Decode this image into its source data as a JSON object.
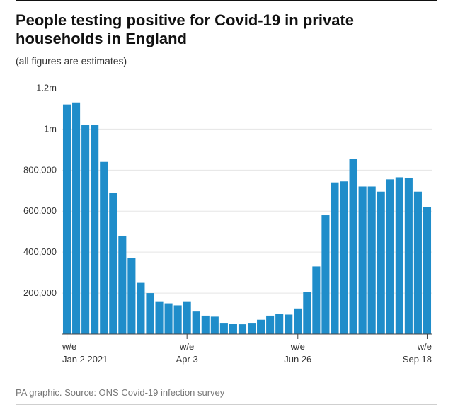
{
  "title": "People testing positive for Covid-19 in private households in England",
  "subtitle": "(all figures are estimates)",
  "source": "PA graphic. Source: ONS Covid-19 infection survey",
  "colors": {
    "page_bg": "#ffffff",
    "rule_top": "#111111",
    "rule_bottom": "#cfcfcf",
    "title": "#111111",
    "subtitle": "#333333",
    "source": "#777777",
    "grid": "#e5e5e5",
    "axis": "#444444",
    "bar": "#1f8dca",
    "tick_label": "#333333"
  },
  "typography": {
    "title_fontsize": 22,
    "title_weight": 700,
    "subtitle_fontsize": 14,
    "source_fontsize": 13,
    "axis_label_fontsize": 13
  },
  "chart": {
    "type": "bar",
    "ymin": 0,
    "ymax": 1250000,
    "ytick_step": 200000,
    "ytick_labels": [
      "200,000",
      "400,000",
      "600,000",
      "800,000",
      "1m",
      "1.2m"
    ],
    "bar_gap_ratio": 0.15,
    "plot_left_pad": 66,
    "plot_right_pad": 8,
    "plot_top_pad": 10,
    "plot_bottom_pad": 52,
    "values": [
      1120000,
      1130000,
      1020000,
      1020000,
      840000,
      690000,
      480000,
      370000,
      250000,
      200000,
      160000,
      150000,
      140000,
      160000,
      110000,
      90000,
      85000,
      55000,
      50000,
      48000,
      55000,
      70000,
      90000,
      100000,
      95000,
      125000,
      205000,
      330000,
      580000,
      740000,
      745000,
      855000,
      720000,
      720000,
      695000,
      755000,
      765000,
      760000,
      695000,
      620000
    ],
    "xticks": [
      {
        "index": 0,
        "line1": "w/e",
        "line2": "Jan 2 2021"
      },
      {
        "index": 13,
        "line1": "w/e",
        "line2": "Apr 3"
      },
      {
        "index": 25,
        "line1": "w/e",
        "line2": "Jun 26"
      },
      {
        "index": 39,
        "line1": "w/e",
        "line2": "Sep 18",
        "align": "end"
      }
    ]
  }
}
